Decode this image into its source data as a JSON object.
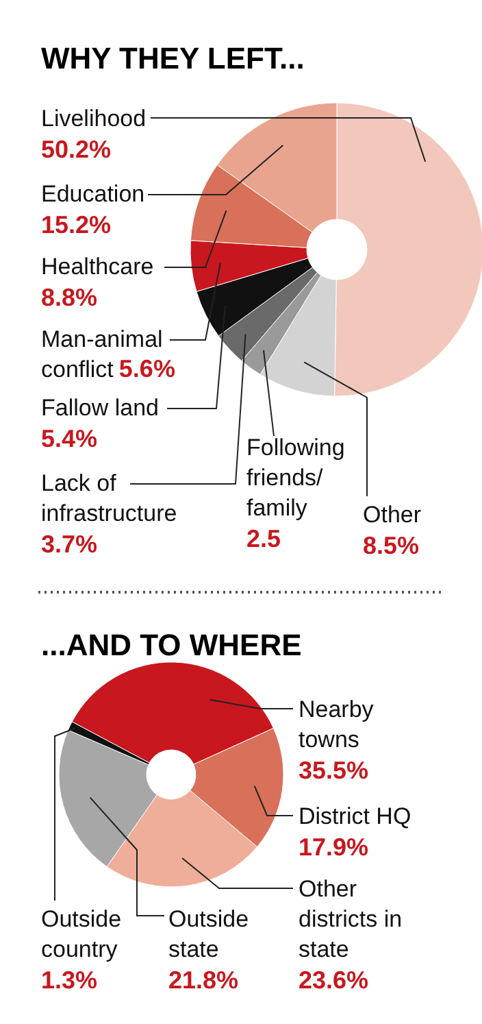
{
  "chart_data": [
    {
      "type": "donut",
      "title": "WHY THEY LEFT...",
      "categories": [
        "Livelihood",
        "Other",
        "Following friends/ family",
        "Lack of infrastructure",
        "Fallow land",
        "Man-animal conflict",
        "Healthcare",
        "Education"
      ],
      "values": [
        50.2,
        8.5,
        2.5,
        3.7,
        5.4,
        5.6,
        8.8,
        15.2
      ],
      "value_labels": [
        "50.2%",
        "8.5%",
        "2.5",
        "3.7%",
        "5.4%",
        "5.6%",
        "8.8%",
        "15.2%"
      ],
      "colors": [
        "#f2c8bc",
        "#d3d3d3",
        "#9a9a9a",
        "#6a6a6a",
        "#111111",
        "#c8171e",
        "#d9705a",
        "#e9a48f"
      ]
    },
    {
      "type": "donut",
      "title": "...AND TO WHERE",
      "categories": [
        "Nearby towns",
        "District HQ",
        "Other districts in state",
        "Outside state",
        "Outside country"
      ],
      "values": [
        35.5,
        17.9,
        23.6,
        21.8,
        1.3
      ],
      "value_labels": [
        "35.5%",
        "17.9%",
        "23.6%",
        "21.8%",
        "1.3%"
      ],
      "colors": [
        "#c8171e",
        "#d9705a",
        "#eeae99",
        "#a7a7a7",
        "#111111"
      ]
    }
  ]
}
